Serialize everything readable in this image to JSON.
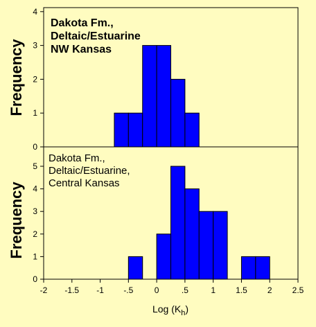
{
  "chart_data": [
    {
      "type": "bar",
      "title_lines": [
        "Dakota Fm.,",
        "Deltaic/Estuarine",
        "NW Kansas"
      ],
      "ylabel": "Frequency",
      "ylim": [
        0,
        4
      ],
      "yticks": [
        "0",
        "1",
        "2",
        "3",
        "4"
      ],
      "bin_width": 0.25,
      "bins": [
        {
          "left": -0.75,
          "count": 1
        },
        {
          "left": -0.5,
          "count": 1
        },
        {
          "left": -0.25,
          "count": 3
        },
        {
          "left": 0.0,
          "count": 3
        },
        {
          "left": 0.25,
          "count": 2
        },
        {
          "left": 0.5,
          "count": 1
        }
      ],
      "bar_color": "#0000ff"
    },
    {
      "type": "bar",
      "title_lines": [
        "Dakota Fm.,",
        "Deltaic/Estuarine,",
        "Central Kansas"
      ],
      "ylabel": "Frequency",
      "ylim": [
        0,
        5.5
      ],
      "yticks": [
        "0",
        "1",
        "2",
        "3",
        "4",
        "5"
      ],
      "bin_width": 0.25,
      "bins": [
        {
          "left": -0.5,
          "count": 1
        },
        {
          "left": 0.0,
          "count": 2
        },
        {
          "left": 0.25,
          "count": 5
        },
        {
          "left": 0.5,
          "count": 4
        },
        {
          "left": 0.75,
          "count": 3
        },
        {
          "left": 1.0,
          "count": 3
        },
        {
          "left": 1.5,
          "count": 1
        },
        {
          "left": 1.75,
          "count": 1
        }
      ],
      "xlabel": "Log (K",
      "xlabel_subscript": "h",
      "xlabel_close": ")",
      "xlim": [
        -2,
        2.5
      ],
      "xticks": [
        "-2",
        "-1.5",
        "-1",
        "-.5",
        "0",
        ".5",
        "1",
        "1.5",
        "2",
        "2.5"
      ],
      "bar_color": "#0000ff"
    }
  ]
}
